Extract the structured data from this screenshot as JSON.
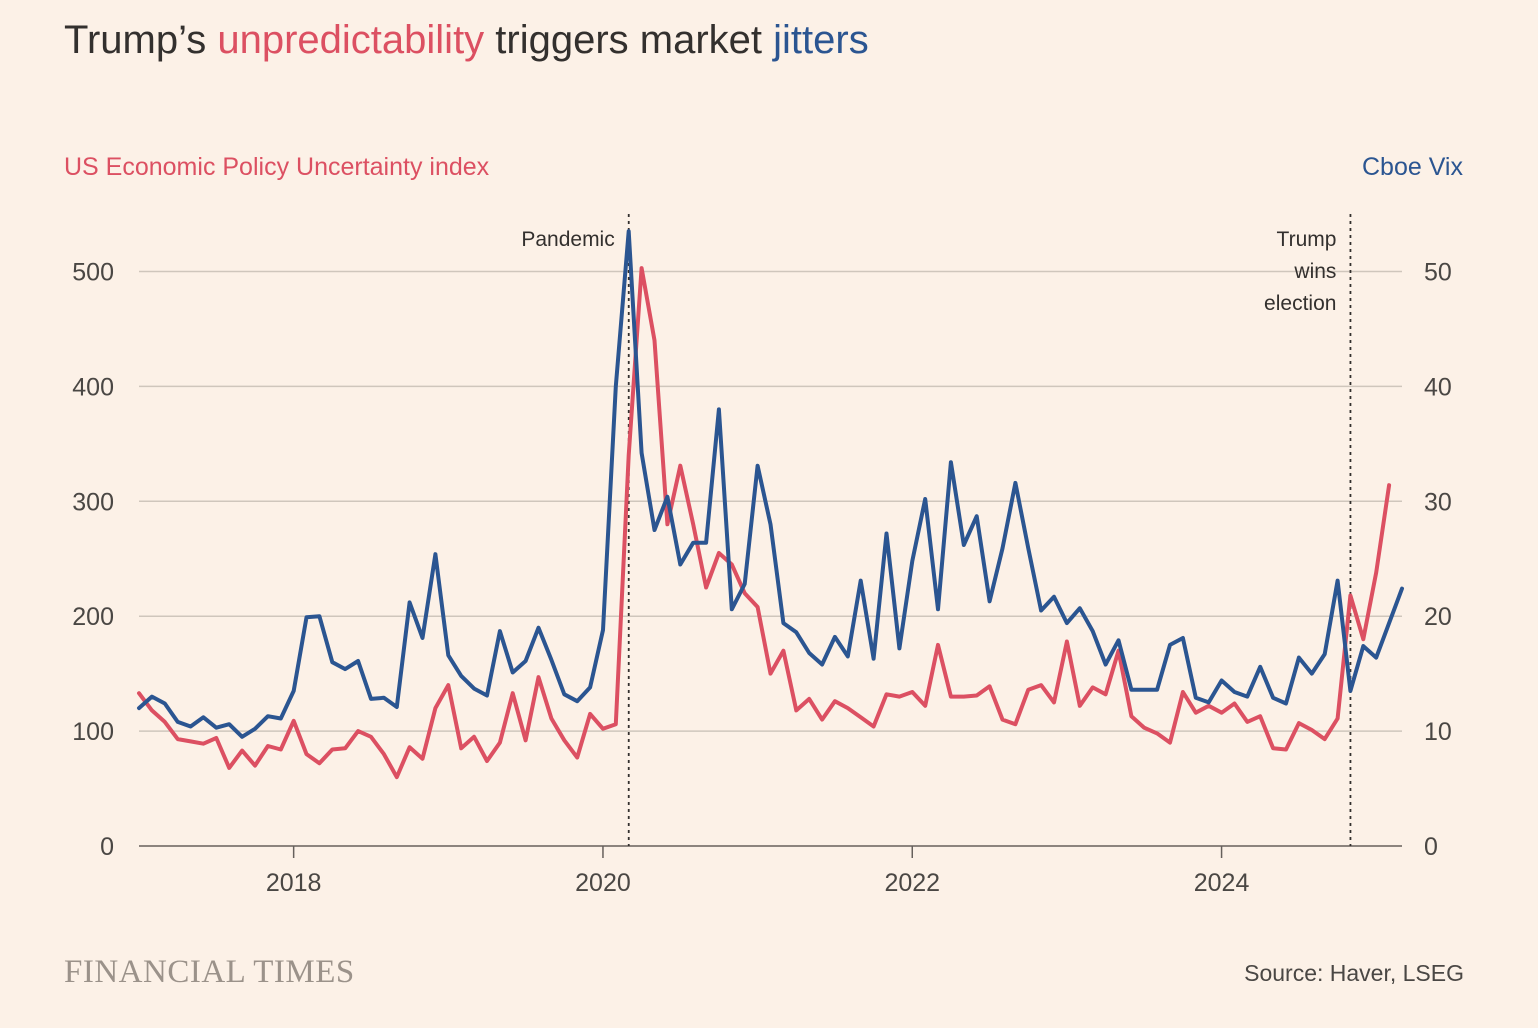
{
  "title": {
    "prefix": "Trump’s ",
    "highlight_red": "unpredictability",
    "middle": " triggers market ",
    "highlight_blue": "jitters"
  },
  "branding": "FINANCIAL TIMES",
  "source": "Source: Haver, LSEG",
  "colors": {
    "background": "#fcf1e7",
    "epu": "#dc5062",
    "vix": "#2b5591",
    "grid": "#cfc6bc",
    "text": "#33302e"
  },
  "chart_data": {
    "type": "line",
    "grid": true,
    "left_axis": {
      "title": "US Economic Policy Uncertainty index",
      "ylim": [
        0,
        550
      ],
      "ticks": [
        0,
        100,
        200,
        300,
        400,
        500
      ],
      "tick_labels": [
        "0",
        "100",
        "200",
        "300",
        "400",
        "500"
      ]
    },
    "right_axis": {
      "title": "Cboe Vix",
      "ylim": [
        0,
        55
      ],
      "ticks": [
        0,
        10,
        20,
        30,
        40,
        50
      ],
      "tick_labels": [
        "0",
        "10",
        "20",
        "30",
        "40",
        "50"
      ]
    },
    "x_axis": {
      "range": [
        "2017-01",
        "2025-03"
      ],
      "ticks": [
        "2018-01",
        "2020-01",
        "2022-01",
        "2024-01"
      ],
      "tick_labels": [
        "2018",
        "2020",
        "2022",
        "2024"
      ]
    },
    "annotations": [
      {
        "date": "2020-03",
        "text_lines": [
          "Pandemic"
        ]
      },
      {
        "date": "2024-11",
        "text_lines": [
          "Trump",
          "wins",
          "election"
        ]
      }
    ],
    "x": [
      "2017-01",
      "2017-02",
      "2017-03",
      "2017-04",
      "2017-05",
      "2017-06",
      "2017-07",
      "2017-08",
      "2017-09",
      "2017-10",
      "2017-11",
      "2017-12",
      "2018-01",
      "2018-02",
      "2018-03",
      "2018-04",
      "2018-05",
      "2018-06",
      "2018-07",
      "2018-08",
      "2018-09",
      "2018-10",
      "2018-11",
      "2018-12",
      "2019-01",
      "2019-02",
      "2019-03",
      "2019-04",
      "2019-05",
      "2019-06",
      "2019-07",
      "2019-08",
      "2019-09",
      "2019-10",
      "2019-11",
      "2019-12",
      "2020-01",
      "2020-02",
      "2020-03",
      "2020-04",
      "2020-05",
      "2020-06",
      "2020-07",
      "2020-08",
      "2020-09",
      "2020-10",
      "2020-11",
      "2020-12",
      "2021-01",
      "2021-02",
      "2021-03",
      "2021-04",
      "2021-05",
      "2021-06",
      "2021-07",
      "2021-08",
      "2021-09",
      "2021-10",
      "2021-11",
      "2021-12",
      "2022-01",
      "2022-02",
      "2022-03",
      "2022-04",
      "2022-05",
      "2022-06",
      "2022-07",
      "2022-08",
      "2022-09",
      "2022-10",
      "2022-11",
      "2022-12",
      "2023-01",
      "2023-02",
      "2023-03",
      "2023-04",
      "2023-05",
      "2023-06",
      "2023-07",
      "2023-08",
      "2023-09",
      "2023-10",
      "2023-11",
      "2023-12",
      "2024-01",
      "2024-02",
      "2024-03",
      "2024-04",
      "2024-05",
      "2024-06",
      "2024-07",
      "2024-08",
      "2024-09",
      "2024-10",
      "2024-11",
      "2024-12",
      "2025-01",
      "2025-02",
      "2025-03"
    ],
    "series": [
      {
        "name": "US Economic Policy Uncertainty index",
        "axis": "left",
        "values": [
          133,
          118,
          108,
          93,
          91,
          89,
          94,
          68,
          83,
          70,
          87,
          84,
          109,
          80,
          72,
          84,
          85,
          100,
          95,
          80,
          60,
          86,
          76,
          120,
          140,
          85,
          95,
          74,
          90,
          133,
          92,
          147,
          111,
          92,
          77,
          115,
          102,
          106,
          340,
          503,
          440,
          280,
          331,
          280,
          225,
          255,
          245,
          220,
          208,
          150,
          170,
          118,
          128,
          110,
          126,
          120,
          112,
          104,
          132,
          130,
          134,
          122,
          175,
          130,
          130,
          131,
          139,
          110,
          106,
          136,
          140,
          125,
          178,
          122,
          138,
          132,
          170,
          113,
          103,
          98,
          90,
          134,
          116,
          122,
          116,
          124,
          108,
          113,
          85,
          84,
          107,
          101,
          93,
          111,
          218,
          180,
          238,
          314,
          null
        ],
        "color": "#dc5062"
      },
      {
        "name": "Cboe Vix",
        "axis": "right",
        "values": [
          12,
          13,
          12.4,
          10.8,
          10.4,
          11.2,
          10.3,
          10.6,
          9.5,
          10.2,
          11.3,
          11.1,
          13.5,
          19.9,
          20,
          16,
          15.4,
          16.1,
          12.8,
          12.9,
          12.1,
          21.2,
          18.1,
          25.4,
          16.6,
          14.8,
          13.7,
          13.1,
          18.7,
          15.1,
          16.1,
          19,
          16.2,
          13.2,
          12.6,
          13.8,
          18.8,
          40,
          53.5,
          34.2,
          27.5,
          30.4,
          24.5,
          26.4,
          26.4,
          38,
          20.6,
          22.8,
          33.1,
          28,
          19.4,
          18.6,
          16.8,
          15.8,
          18.2,
          16.5,
          23.1,
          16.3,
          27.2,
          17.2,
          24.8,
          30.2,
          20.6,
          33.4,
          26.2,
          28.7,
          21.3,
          25.9,
          31.6,
          25.9,
          20.5,
          21.7,
          19.4,
          20.7,
          18.7,
          15.8,
          17.9,
          13.6,
          13.6,
          13.6,
          17.5,
          18.1,
          12.9,
          12.5,
          14.4,
          13.4,
          13.0,
          15.6,
          12.9,
          12.4,
          16.4,
          15.0,
          16.7,
          23.1,
          13.5,
          17.4,
          16.4,
          19.4,
          22.4
        ],
        "color": "#2b5591"
      }
    ]
  }
}
